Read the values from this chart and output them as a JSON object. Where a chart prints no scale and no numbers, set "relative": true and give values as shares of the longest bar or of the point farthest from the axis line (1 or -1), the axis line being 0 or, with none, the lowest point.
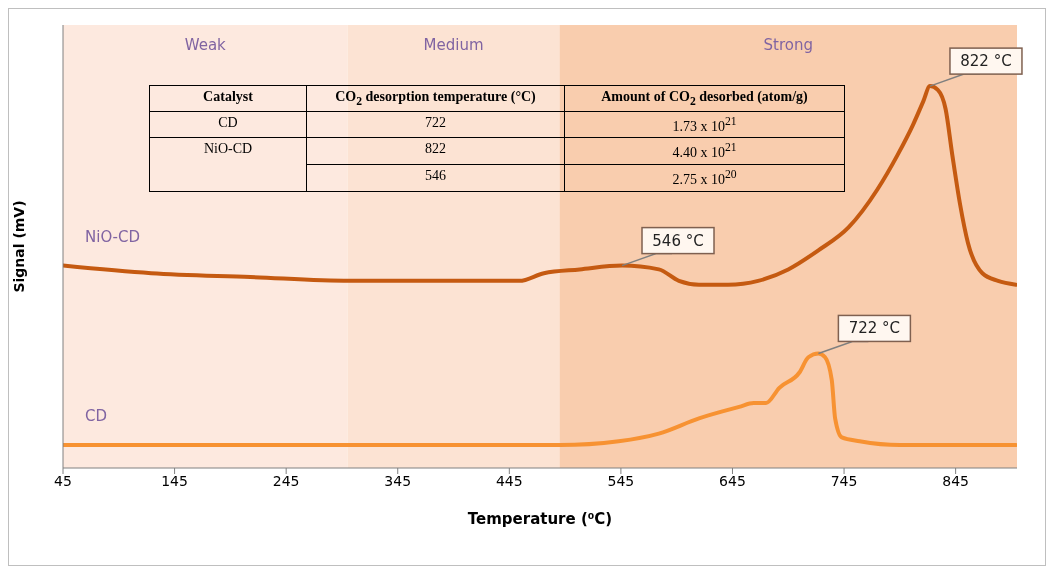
{
  "chart_data": {
    "type": "line",
    "xlabel": "Temperature (⁰C)",
    "ylabel": "Signal (mV)",
    "relative": true,
    "xlim": [
      45,
      900
    ],
    "xticks": [
      45,
      145,
      245,
      345,
      445,
      545,
      645,
      745,
      845
    ],
    "marker": "none",
    "line_style": "solid",
    "bands": [
      {
        "axis": "x",
        "from": 45,
        "to": 300,
        "label": "Weak",
        "color": "#fde9df"
      },
      {
        "axis": "x",
        "from": 300,
        "to": 490,
        "label": "Medium",
        "color": "#fce3d3"
      },
      {
        "axis": "x",
        "from": 490,
        "to": 900,
        "label": "Strong",
        "color": "#f9cdae"
      }
    ],
    "series": [
      {
        "name": "NiO-CD",
        "color": "#c55a11",
        "x": [
          45,
          124,
          213,
          302,
          391,
          454,
          476,
          508,
          546,
          579,
          597,
          615,
          641,
          668,
          695,
          722,
          749,
          775,
          793,
          807,
          816,
          822,
          829,
          836,
          842,
          849,
          856,
          869,
          883,
          899
        ],
        "values": [
          0.53,
          0.51,
          0.5,
          0.49,
          0.49,
          0.49,
          0.51,
          0.52,
          0.53,
          0.52,
          0.49,
          0.48,
          0.48,
          0.49,
          0.52,
          0.57,
          0.63,
          0.73,
          0.82,
          0.9,
          0.96,
          1,
          0.99,
          0.94,
          0.82,
          0.69,
          0.59,
          0.51,
          0.49,
          0.48
        ]
      },
      {
        "name": "CD",
        "color": "#f79232",
        "x": [
          45,
          258,
          490,
          543,
          579,
          615,
          651,
          664,
          675,
          687,
          705,
          713,
          722,
          728,
          734,
          737,
          743,
          759,
          795,
          899
        ],
        "values": [
          0.06,
          0.06,
          0.06,
          0.07,
          0.09,
          0.13,
          0.16,
          0.17,
          0.17,
          0.21,
          0.25,
          0.29,
          0.3,
          0.29,
          0.23,
          0.13,
          0.08,
          0.07,
          0.06,
          0.06
        ]
      }
    ],
    "annotations": [
      "Catalyst",
      "CO$_{2}$ desorption temperature (°C)",
      "Amount of CO$_{2}$ desorbed (atom/g)",
      "CD",
      "722",
      "1.73 x 10$^{21}$",
      "NiO-CD",
      "822",
      "4.40 x 10$^{21}$",
      "546",
      "2.75 x 10$^{20}$",
      {
        "text": "822 °C",
        "x": 822,
        "y": 1
      },
      {
        "text": "546 °C",
        "x": 546,
        "y": 0.53
      },
      {
        "text": "722 °C",
        "x": 722,
        "y": 0.3
      }
    ]
  }
}
